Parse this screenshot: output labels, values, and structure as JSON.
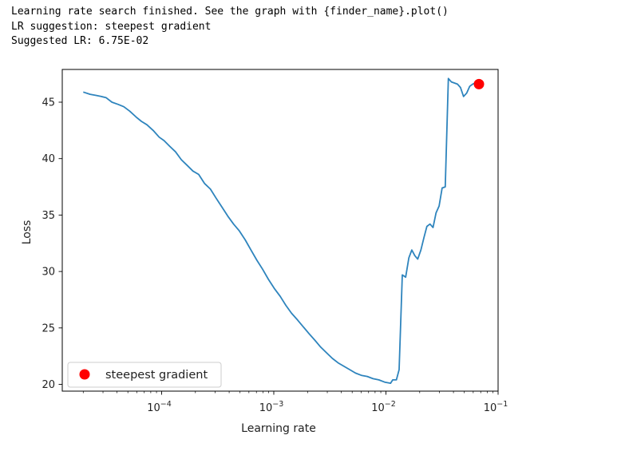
{
  "output": {
    "line1": "Learning rate search finished. See the graph with {finder_name}.plot()",
    "line2": "LR suggestion: steepest gradient",
    "line3": "Suggested LR: 6.75E-02"
  },
  "chart_data": {
    "type": "line",
    "title": "",
    "xlabel": "Learning rate",
    "ylabel": "Loss",
    "xscale": "log",
    "xlim": [
      1.3e-05,
      0.1
    ],
    "ylim": [
      19.4,
      47.9
    ],
    "x_ticks": [
      {
        "value": 0.0001,
        "base": "10",
        "exp": "−4"
      },
      {
        "value": 0.001,
        "base": "10",
        "exp": "−3"
      },
      {
        "value": 0.01,
        "base": "10",
        "exp": "−2"
      },
      {
        "value": 0.1,
        "base": "10",
        "exp": "−1"
      }
    ],
    "y_ticks": [
      {
        "value": 20,
        "label": "20"
      },
      {
        "value": 25,
        "label": "25"
      },
      {
        "value": 30,
        "label": "30"
      },
      {
        "value": 35,
        "label": "35"
      },
      {
        "value": 40,
        "label": "40"
      },
      {
        "value": 45,
        "label": "45"
      }
    ],
    "grid": false,
    "legend_position": "lower-left",
    "series": [
      {
        "color": "#2e84bd",
        "points": [
          [
            2e-05,
            45.9
          ],
          [
            2.3e-05,
            45.7
          ],
          [
            2.6e-05,
            45.6
          ],
          [
            2.9e-05,
            45.5
          ],
          [
            3.2e-05,
            45.4
          ],
          [
            3.6e-05,
            45.0
          ],
          [
            4.1e-05,
            44.8
          ],
          [
            4.6e-05,
            44.6
          ],
          [
            5.2e-05,
            44.2
          ],
          [
            5.9e-05,
            43.7
          ],
          [
            6.6e-05,
            43.3
          ],
          [
            7.4e-05,
            43.0
          ],
          [
            8.4e-05,
            42.5
          ],
          [
            9.5e-05,
            41.9
          ],
          [
            0.000105,
            41.6
          ],
          [
            0.000118,
            41.1
          ],
          [
            0.000133,
            40.6
          ],
          [
            0.00015,
            39.9
          ],
          [
            0.000169,
            39.4
          ],
          [
            0.00019,
            38.9
          ],
          [
            0.000214,
            38.6
          ],
          [
            0.000241,
            37.8
          ],
          [
            0.000272,
            37.3
          ],
          [
            0.000306,
            36.5
          ],
          [
            0.000345,
            35.7
          ],
          [
            0.000389,
            34.9
          ],
          [
            0.000438,
            34.2
          ],
          [
            0.000493,
            33.6
          ],
          [
            0.000556,
            32.8
          ],
          [
            0.000626,
            31.9
          ],
          [
            0.000706,
            31.0
          ],
          [
            0.000795,
            30.2
          ],
          [
            0.000896,
            29.3
          ],
          [
            0.00101,
            28.5
          ],
          [
            0.00114,
            27.8
          ],
          [
            0.00128,
            27.0
          ],
          [
            0.00144,
            26.3
          ],
          [
            0.00163,
            25.7
          ],
          [
            0.00183,
            25.1
          ],
          [
            0.00206,
            24.5
          ],
          [
            0.00233,
            23.9
          ],
          [
            0.00262,
            23.3
          ],
          [
            0.00295,
            22.8
          ],
          [
            0.00333,
            22.3
          ],
          [
            0.00375,
            21.9
          ],
          [
            0.00422,
            21.6
          ],
          [
            0.00476,
            21.3
          ],
          [
            0.00536,
            21.0
          ],
          [
            0.00604,
            20.8
          ],
          [
            0.00681,
            20.7
          ],
          [
            0.00767,
            20.5
          ],
          [
            0.00864,
            20.4
          ],
          [
            0.00974,
            20.2
          ],
          [
            0.011,
            20.1
          ],
          [
            0.0115,
            20.4
          ],
          [
            0.0124,
            20.4
          ],
          [
            0.0131,
            21.3
          ],
          [
            0.014,
            29.7
          ],
          [
            0.015,
            29.5
          ],
          [
            0.016,
            31.2
          ],
          [
            0.017,
            31.9
          ],
          [
            0.0181,
            31.4
          ],
          [
            0.0192,
            31.1
          ],
          [
            0.0205,
            31.9
          ],
          [
            0.0218,
            33.0
          ],
          [
            0.0232,
            34.0
          ],
          [
            0.0247,
            34.2
          ],
          [
            0.0263,
            33.9
          ],
          [
            0.028,
            35.2
          ],
          [
            0.0298,
            35.8
          ],
          [
            0.0317,
            37.4
          ],
          [
            0.0338,
            37.5
          ],
          [
            0.036,
            47.1
          ],
          [
            0.0383,
            46.8
          ],
          [
            0.0408,
            46.7
          ],
          [
            0.0434,
            46.6
          ],
          [
            0.0462,
            46.3
          ],
          [
            0.0492,
            45.5
          ],
          [
            0.0524,
            45.8
          ],
          [
            0.0558,
            46.4
          ],
          [
            0.0594,
            46.6
          ],
          [
            0.062,
            46.7
          ]
        ]
      }
    ],
    "suggestion_point": {
      "name": "steepest gradient",
      "x": 0.0675,
      "y": 46.6,
      "color": "#ff0000"
    }
  }
}
